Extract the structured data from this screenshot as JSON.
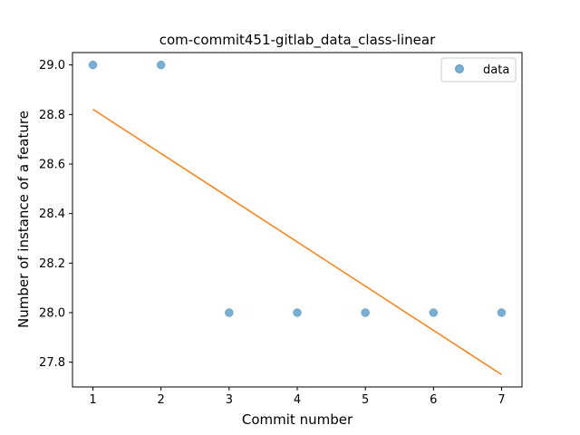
{
  "chart_data": {
    "type": "scatter",
    "title": "com-commit451-gitlab_data_class-linear",
    "xlabel": "Commit number",
    "ylabel": "Number of instance of a feature",
    "xlim": [
      0.7,
      7.3
    ],
    "ylim": [
      27.7,
      29.05
    ],
    "xticks": [
      1,
      2,
      3,
      4,
      5,
      6,
      7
    ],
    "yticks": [
      27.8,
      28.0,
      28.2,
      28.4,
      28.6,
      28.8,
      29.0
    ],
    "ytick_labels": [
      "27.8",
      "28.0",
      "28.2",
      "28.4",
      "28.6",
      "28.8",
      "29.0"
    ],
    "grid": false,
    "legend_position": "top-right",
    "series": [
      {
        "name": "data",
        "kind": "scatter",
        "color": "#1f77b4",
        "x": [
          1,
          2,
          3,
          4,
          5,
          6,
          7
        ],
        "y": [
          29,
          29,
          28,
          28,
          28,
          28,
          28
        ]
      },
      {
        "kind": "line",
        "color": "#ff7f0e",
        "x": [
          1,
          7
        ],
        "y": [
          28.821,
          27.75
        ]
      }
    ]
  }
}
